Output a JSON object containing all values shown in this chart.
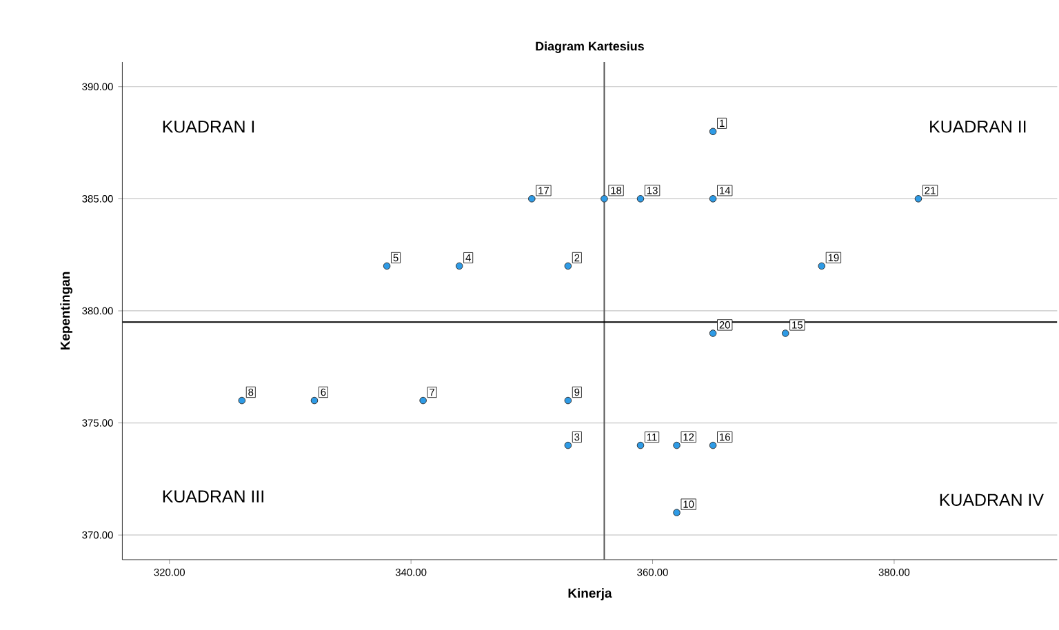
{
  "chart_data": {
    "type": "scatter",
    "title": "Diagram Kartesius",
    "xlabel": "Kinerja",
    "ylabel": "Kepentingan",
    "x": [
      365,
      353,
      353,
      344,
      338,
      332,
      341,
      326,
      353,
      362,
      359,
      362,
      359,
      365,
      371,
      365,
      350,
      356,
      374,
      365,
      382
    ],
    "values": [
      388,
      382,
      374,
      382,
      382,
      376,
      376,
      376,
      376,
      371,
      374,
      374,
      385,
      385,
      379,
      374,
      385,
      385,
      382,
      379,
      385
    ],
    "color": "#2e9be6",
    "marker": "circle",
    "xlim": [
      316.1,
      393.5
    ],
    "ylim": [
      368.9,
      391.1
    ],
    "xticks": [
      {
        "value": 320,
        "label": "320.00"
      },
      {
        "value": 340,
        "label": "340.00"
      },
      {
        "value": 360,
        "label": "360.00"
      },
      {
        "value": 380,
        "label": "380.00"
      }
    ],
    "yticks": [
      {
        "value": 370,
        "label": "370.00"
      },
      {
        "value": 375,
        "label": "375.00"
      },
      {
        "value": 380,
        "label": "380.00"
      },
      {
        "value": 385,
        "label": "385.00"
      },
      {
        "value": 390,
        "label": "390.00"
      }
    ],
    "grid": "y",
    "ref_lines": [
      {
        "axis": "x",
        "value": 356,
        "color": "#555555"
      },
      {
        "axis": "y",
        "value": 379.5,
        "color": "#000000"
      }
    ],
    "annotations": [
      "KUADRAN I",
      "KUADRAN II",
      "KUADRAN III",
      "KUADRAN IV",
      {
        "text": "1",
        "x": 365,
        "y": 388
      },
      {
        "text": "2",
        "x": 353,
        "y": 382
      },
      {
        "text": "3",
        "x": 353,
        "y": 374
      },
      {
        "text": "4",
        "x": 344,
        "y": 382
      },
      {
        "text": "5",
        "x": 338,
        "y": 382
      },
      {
        "text": "6",
        "x": 332,
        "y": 376
      },
      {
        "text": "7",
        "x": 341,
        "y": 376
      },
      {
        "text": "8",
        "x": 326,
        "y": 376
      },
      {
        "text": "9",
        "x": 353,
        "y": 376
      },
      {
        "text": "10",
        "x": 362,
        "y": 371
      },
      {
        "text": "11",
        "x": 359,
        "y": 374
      },
      {
        "text": "12",
        "x": 362,
        "y": 374
      },
      {
        "text": "13",
        "x": 359,
        "y": 385
      },
      {
        "text": "14",
        "x": 365,
        "y": 385
      },
      {
        "text": "15",
        "x": 371,
        "y": 379
      },
      {
        "text": "16",
        "x": 365,
        "y": 374
      },
      {
        "text": "17",
        "x": 350,
        "y": 385
      },
      {
        "text": "18",
        "x": 356,
        "y": 385
      },
      {
        "text": "19",
        "x": 374,
        "y": 382
      },
      {
        "text": "20",
        "x": 365,
        "y": 379
      },
      {
        "text": "21",
        "x": 382,
        "y": 385
      }
    ]
  }
}
